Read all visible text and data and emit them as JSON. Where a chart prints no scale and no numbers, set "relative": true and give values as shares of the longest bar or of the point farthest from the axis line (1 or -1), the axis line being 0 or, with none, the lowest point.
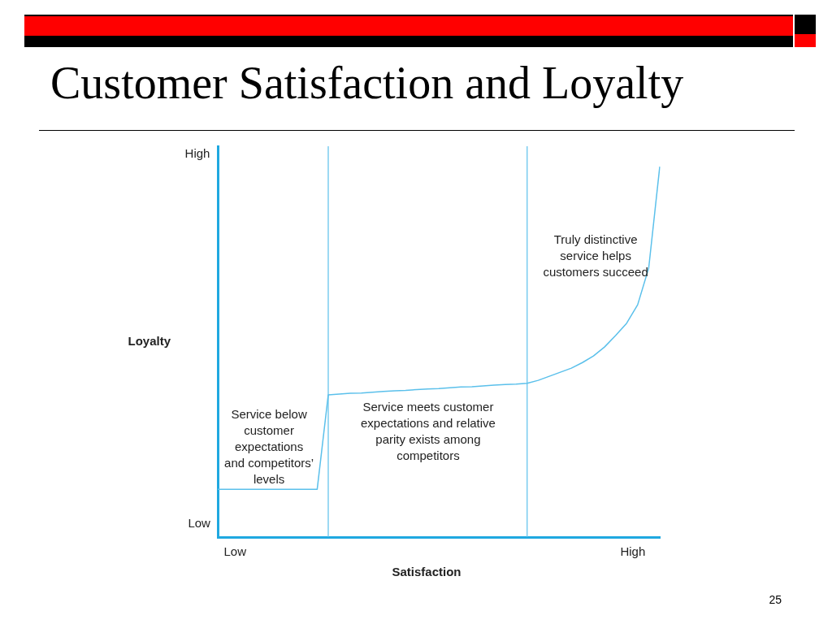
{
  "chart_data": {
    "type": "line",
    "title": "Customer Satisfaction and Loyalty",
    "xlabel": "Satisfaction",
    "ylabel": "Loyalty",
    "relative": true,
    "legend": false,
    "marker": "none",
    "line_style": "solid",
    "categories": [
      null,
      null,
      null,
      null,
      null,
      null,
      null,
      null,
      null,
      null,
      null,
      null,
      null,
      null,
      null,
      null,
      null,
      null,
      null,
      null,
      null,
      null,
      null,
      null,
      null,
      null,
      null,
      null,
      null,
      null,
      null,
      null,
      null,
      null,
      null,
      null,
      null,
      null,
      null,
      null,
      null
    ],
    "series": [
      {
        "color": "#5bc0eb",
        "values": [
          0.129,
          0.129,
          0.129,
          0.129,
          0.129,
          0.129,
          0.129,
          0.129,
          0.129,
          0.129,
          0.384,
          0.386,
          0.388,
          0.389,
          0.391,
          0.393,
          0.395,
          0.396,
          0.398,
          0.4,
          0.401,
          0.403,
          0.405,
          0.406,
          0.408,
          0.41,
          0.412,
          0.413,
          0.415,
          0.423,
          0.434,
          0.445,
          0.456,
          0.471,
          0.489,
          0.513,
          0.544,
          0.577,
          0.627,
          0.726,
          1
        ]
      }
    ],
    "annotations": [
      "Service below\ncustomer\nexpectations\nand competitors’\nlevels",
      "Service meets customer\nexpectations and relative\nparity exists among\ncompetitors",
      "Truly distinctive\nservice helps\ncustomers succeed",
      "High",
      "Low",
      "Low",
      "High",
      "25"
    ]
  }
}
